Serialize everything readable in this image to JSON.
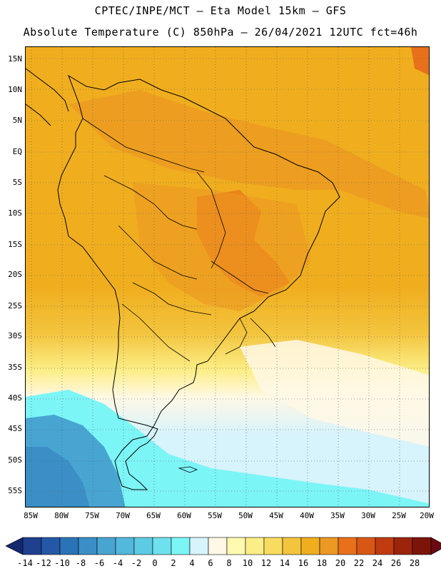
{
  "header": {
    "title_line1": "CPTEC/INPE/MCT –  Eta Model 15km – GFS",
    "title_line2": "Absolute Temperature (C) 850hPa – 26/04/2021 12UTC fct=46h"
  },
  "axes": {
    "lat_labels": [
      "15N",
      "10N",
      "5N",
      "EQ",
      "5S",
      "10S",
      "15S",
      "20S",
      "25S",
      "30S",
      "35S",
      "40S",
      "45S",
      "50S",
      "55S"
    ],
    "lon_labels": [
      "85W",
      "80W",
      "75W",
      "70W",
      "65W",
      "60W",
      "55W",
      "50W",
      "45W",
      "40W",
      "35W",
      "30W",
      "25W",
      "20W"
    ]
  },
  "colorbar": {
    "labels": [
      "-14",
      "-12",
      "-10",
      "-8",
      "-6",
      "-4",
      "-2",
      "0",
      "2",
      "4",
      "6",
      "8",
      "10",
      "12",
      "14",
      "16",
      "18",
      "20",
      "22",
      "24",
      "26",
      "28"
    ],
    "colors": [
      "#1f3f8f",
      "#2458a6",
      "#2b73b8",
      "#3b8fc6",
      "#48a5d2",
      "#52b8dc",
      "#5ccbe3",
      "#6fe0ee",
      "#7cf5f7",
      "#d7f3fb",
      "#fff8e6",
      "#fffab0",
      "#fcee86",
      "#f8dc5f",
      "#f3c43d",
      "#f0ae1e",
      "#ec9822",
      "#e8701a",
      "#d95715",
      "#c03b10",
      "#9c240c",
      "#7c1508"
    ],
    "min_arrow_color": "#14286e",
    "max_arrow_color": "#6a0a12"
  },
  "map_colors": {
    "ocean_south": "#7cf5f7",
    "deep_cold": "#3b8fc6",
    "base": "#f0ae1e",
    "warm": "#ec9822",
    "hot": "#e8701a"
  }
}
